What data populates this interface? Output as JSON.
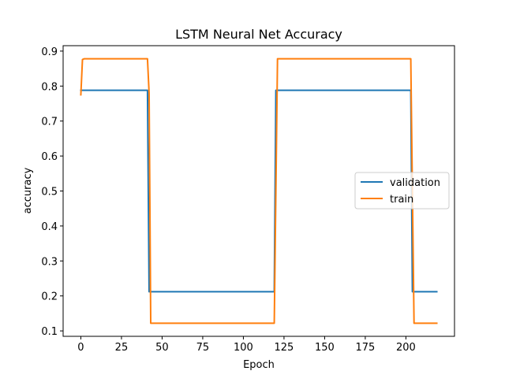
{
  "chart_data": {
    "type": "line",
    "title": "LSTM Neural Net Accuracy",
    "xlabel": "Epoch",
    "ylabel": "accuracy",
    "xlim": [
      -10.9,
      229.9
    ],
    "ylim": [
      0.0845,
      0.9155
    ],
    "xticks": [
      0,
      25,
      50,
      75,
      100,
      125,
      150,
      175,
      200
    ],
    "yticks": [
      0.1,
      0.2,
      0.3,
      0.4,
      0.5,
      0.6,
      0.7,
      0.8,
      0.9
    ],
    "grid": false,
    "legend_position": "center-right",
    "series": [
      {
        "name": "validation",
        "color": "#1f77b4",
        "x": [
          0,
          1,
          40,
          41,
          42,
          43,
          119,
          120,
          121,
          203,
          204,
          205,
          219
        ],
        "y": [
          0.788,
          0.788,
          0.788,
          0.788,
          0.212,
          0.212,
          0.212,
          0.788,
          0.788,
          0.788,
          0.212,
          0.212,
          0.212
        ]
      },
      {
        "name": "train",
        "color": "#ff7f0e",
        "x": [
          0,
          1,
          2,
          41,
          42,
          43,
          44,
          119,
          120,
          121,
          122,
          203,
          204,
          205,
          206,
          219
        ],
        "y": [
          0.775,
          0.876,
          0.878,
          0.878,
          0.78,
          0.122,
          0.122,
          0.122,
          0.5,
          0.878,
          0.878,
          0.878,
          0.5,
          0.122,
          0.122,
          0.122
        ]
      }
    ]
  }
}
